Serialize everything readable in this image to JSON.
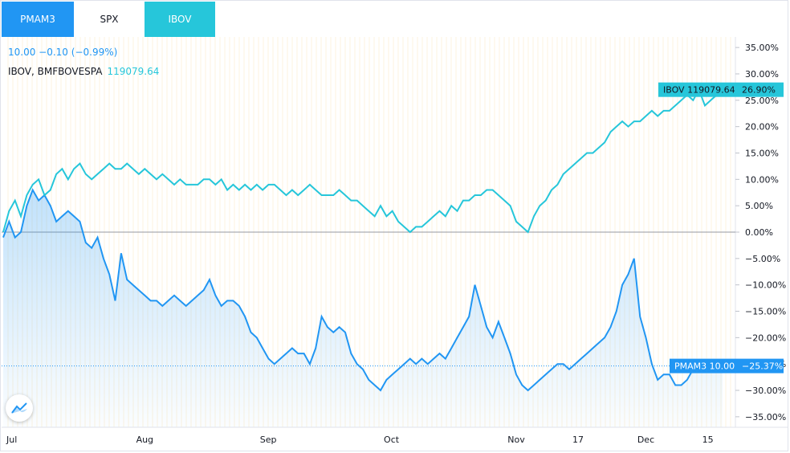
{
  "tabs": [
    {
      "label": "PMAM3",
      "style": "active-blue"
    },
    {
      "label": "SPX",
      "style": "plain"
    },
    {
      "label": "IBOV",
      "style": "active-teal"
    }
  ],
  "legend": {
    "line1": "10.00  −0.10 (−0.99%)",
    "ibov_label": "IBOV, BMFBOVESPA",
    "ibov_value": "119079.64"
  },
  "labels": {
    "ibov_tag": "IBOV 119079.64",
    "ibov_pct": "26.90%",
    "pmam_tag": "PMAM3 10.00",
    "pmam_pct": "−25.37%"
  },
  "colors": {
    "pmam3": "#2196f3",
    "ibov": "#26c6da"
  },
  "icons": {
    "logo": "tradingview-logo-icon"
  },
  "chart_data": {
    "type": "line",
    "y_unit": "%",
    "ylim": [
      -37,
      37
    ],
    "y_ticks": [
      "35.00%",
      "30.00%",
      "25.00%",
      "20.00%",
      "15.00%",
      "10.00%",
      "5.00%",
      "0.00%",
      "−5.00%",
      "−10.00%",
      "−15.00%",
      "−20.00%",
      "−25.00%",
      "−30.00%",
      "−35.00%"
    ],
    "y_tick_values": [
      35,
      30,
      25,
      20,
      15,
      10,
      5,
      0,
      -5,
      -10,
      -15,
      -20,
      -25,
      -30,
      -35
    ],
    "x_ticks": [
      "Jul",
      "Aug",
      "Sep",
      "Oct",
      "Nov",
      "17",
      "Dec",
      "15"
    ],
    "x_tick_index": [
      0,
      22,
      43,
      64,
      85,
      96,
      107,
      118
    ],
    "series": [
      {
        "name": "IBOV",
        "values": [
          0,
          4,
          6,
          3,
          7,
          9,
          10,
          7,
          8,
          11,
          12,
          10,
          12,
          13,
          11,
          10,
          11,
          12,
          13,
          12,
          12,
          13,
          12,
          11,
          12,
          11,
          10,
          11,
          10,
          9,
          10,
          9,
          9,
          9,
          10,
          10,
          9,
          10,
          8,
          9,
          8,
          9,
          8,
          9,
          8,
          9,
          9,
          8,
          7,
          8,
          7,
          8,
          9,
          8,
          7,
          7,
          7,
          8,
          7,
          6,
          6,
          5,
          4,
          3,
          5,
          3,
          4,
          2,
          1,
          0,
          1,
          1,
          2,
          3,
          4,
          3,
          5,
          4,
          6,
          6,
          7,
          7,
          8,
          8,
          7,
          6,
          5,
          2,
          1,
          0,
          3,
          5,
          6,
          8,
          9,
          11,
          12,
          13,
          14,
          15,
          15,
          16,
          17,
          19,
          20,
          21,
          20,
          21,
          21,
          22,
          23,
          22,
          23,
          23,
          24,
          25,
          26,
          25,
          27,
          24,
          25,
          26,
          27
        ]
      },
      {
        "name": "PMAM3",
        "values": [
          -1,
          2,
          -1,
          0,
          5,
          8,
          6,
          7,
          5,
          2,
          3,
          4,
          3,
          2,
          -2,
          -3,
          -1,
          -5,
          -8,
          -13,
          -4,
          -9,
          -10,
          -11,
          -12,
          -13,
          -13,
          -14,
          -13,
          -12,
          -13,
          -14,
          -13,
          -12,
          -11,
          -9,
          -12,
          -14,
          -13,
          -13,
          -14,
          -16,
          -19,
          -20,
          -22,
          -24,
          -25,
          -24,
          -23,
          -22,
          -23,
          -23,
          -25,
          -22,
          -16,
          -18,
          -19,
          -18,
          -19,
          -23,
          -25,
          -26,
          -28,
          -29,
          -30,
          -28,
          -27,
          -26,
          -25,
          -24,
          -25,
          -24,
          -25,
          -24,
          -23,
          -24,
          -22,
          -20,
          -18,
          -16,
          -10,
          -14,
          -18,
          -20,
          -17,
          -20,
          -23,
          -27,
          -29,
          -30,
          -29,
          -28,
          -27,
          -26,
          -25,
          -25,
          -26,
          -25,
          -24,
          -23,
          -22,
          -21,
          -20,
          -18,
          -15,
          -10,
          -8,
          -5,
          -16,
          -20,
          -25,
          -28,
          -27,
          -27,
          -29,
          -29,
          -28,
          -26,
          -25,
          -26,
          -25,
          -26,
          -25.37
        ]
      }
    ]
  }
}
